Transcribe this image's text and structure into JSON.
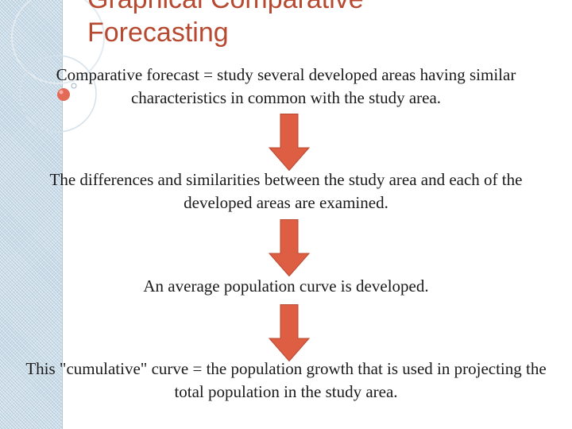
{
  "slide": {
    "title_line1": "Graphical Comparative",
    "title_line2": "Forecasting",
    "steps": [
      {
        "text": "Comparative forecast = study several developed areas having similar characteristics in common with the study area."
      },
      {
        "text": "The differences and similarities between the study area and each of the developed areas are examined."
      },
      {
        "text": "An average population curve is developed."
      },
      {
        "text": "This \"cumulative\" curve = the population growth that is used in projecting the total population in the study area."
      }
    ]
  },
  "theme": {
    "title_color": "#b6492f",
    "arrow_color": "#dd5e42",
    "arrow_outline": "#b8472f",
    "sidebar_color": "#c9dbe8",
    "bullet_color": "#e46a58"
  },
  "icons": {
    "flow_arrow": "down-arrow-icon",
    "bullet": "circle-bullet-icon"
  }
}
